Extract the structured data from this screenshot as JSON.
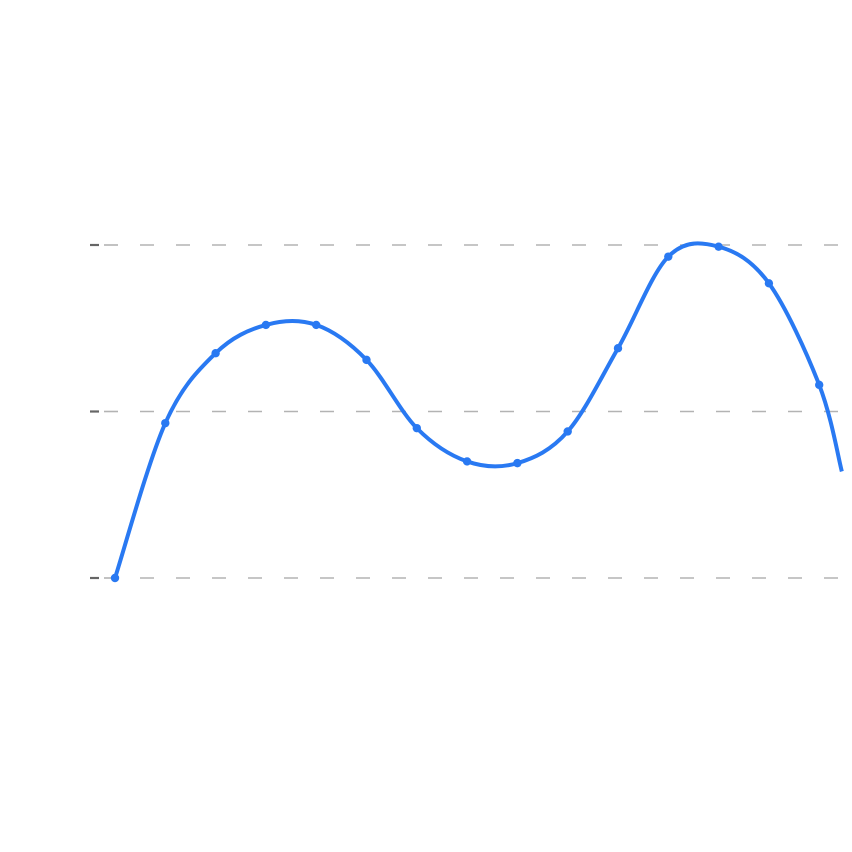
{
  "chart_data": {
    "type": "line",
    "title": "",
    "xlabel": "",
    "ylabel": "",
    "x": [
      0,
      1,
      2,
      3,
      4,
      5,
      6,
      7,
      8,
      9,
      10,
      11,
      12,
      13,
      14
    ],
    "x_extent": 14.45,
    "series": [
      {
        "values": [
          0.0,
          0.93,
          1.35,
          1.52,
          1.52,
          1.31,
          0.9,
          0.7,
          0.69,
          0.88,
          1.38,
          1.93,
          1.99,
          1.77,
          1.16
        ],
        "curve_end_value": 0.64
      }
    ],
    "ylim": [
      -2.0,
      4.0
    ],
    "yticks": [
      0,
      1,
      2
    ],
    "grid": true,
    "legend": "none",
    "colors": {
      "line": "#2979f2",
      "grid": "#b3b3b3",
      "tick": "#666666"
    }
  }
}
